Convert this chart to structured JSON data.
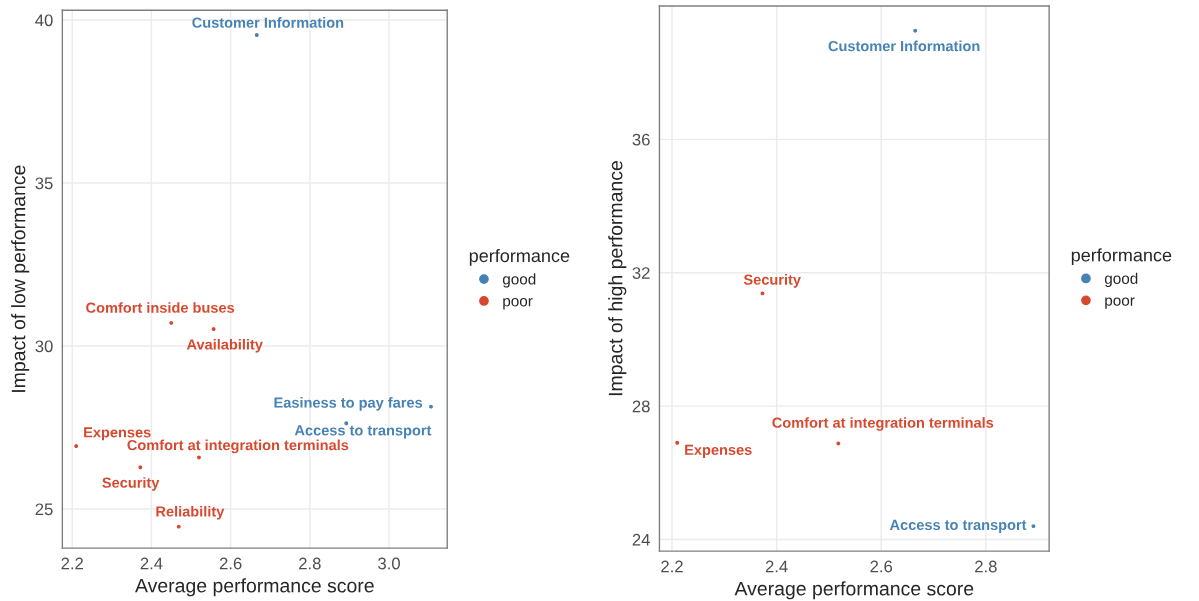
{
  "chart_data": [
    {
      "type": "scatter",
      "xlabel": "Average performance score",
      "ylabel": "Impact of low performance",
      "legend_title": "performance",
      "legend": "right",
      "grid": true,
      "marker": "circle",
      "xlim": [
        2.175,
        3.147
      ],
      "xticks": [
        2.2,
        2.4,
        2.6,
        2.8,
        {
          "value": 3.0,
          "label": "3.0"
        }
      ],
      "ylim": [
        23.8,
        40.3
      ],
      "yticks": [
        25,
        30,
        35,
        40
      ],
      "series": [
        {
          "name": "good",
          "color": "#4682b4",
          "x": [
            2.666,
            3.106,
            2.892
          ],
          "values": [
            39.54,
            28.14,
            27.63
          ]
        },
        {
          "name": "poor",
          "color": "#d6492f",
          "x": [
            2.45,
            2.557,
            2.21,
            2.52,
            2.372,
            2.469
          ],
          "values": [
            30.71,
            30.52,
            26.93,
            26.58,
            26.28,
            24.46
          ]
        }
      ],
      "annotations": [
        {
          "text": "Customer Information",
          "x": 2.666,
          "y": 39.54
        },
        {
          "text": "Comfort inside buses",
          "x": 2.45,
          "y": 30.71
        },
        {
          "text": "Availability",
          "x": 2.557,
          "y": 30.52
        },
        {
          "text": "Easiness to pay fares",
          "x": 3.106,
          "y": 28.14
        },
        {
          "text": "Access to transport",
          "x": 2.892,
          "y": 27.63
        },
        {
          "text": "Expenses",
          "x": 2.21,
          "y": 26.93
        },
        {
          "text": "Comfort at integration terminals",
          "x": 2.52,
          "y": 26.58
        },
        {
          "text": "Security",
          "x": 2.372,
          "y": 26.28
        },
        {
          "text": "Reliability",
          "x": 2.469,
          "y": 24.46
        }
      ]
    },
    {
      "type": "scatter",
      "xlabel": "Average performance score",
      "ylabel": "Impact of high performance",
      "legend_title": "performance",
      "legend": "right",
      "grid": true,
      "marker": "circle",
      "xlim": [
        2.176,
        2.921
      ],
      "xticks": [
        2.2,
        2.4,
        2.6,
        2.8
      ],
      "ylim": [
        23.65,
        40.0
      ],
      "yticks": [
        24,
        28,
        32,
        36
      ],
      "series": [
        {
          "name": "good",
          "color": "#4682b4",
          "x": [
            2.665,
            2.891
          ],
          "values": [
            39.26,
            24.4
          ]
        },
        {
          "name": "poor",
          "color": "#d6492f",
          "x": [
            2.373,
            2.21,
            2.518
          ],
          "values": [
            31.38,
            26.9,
            26.88
          ]
        }
      ],
      "annotations": [
        {
          "text": "Customer Information",
          "x": 2.665,
          "y": 39.26
        },
        {
          "text": "Security",
          "x": 2.373,
          "y": 31.38
        },
        {
          "text": "Expenses",
          "x": 2.21,
          "y": 26.9
        },
        {
          "text": "Comfort at integration terminals",
          "x": 2.518,
          "y": 26.88
        },
        {
          "text": "Access to transport",
          "x": 2.891,
          "y": 24.4
        }
      ]
    }
  ]
}
